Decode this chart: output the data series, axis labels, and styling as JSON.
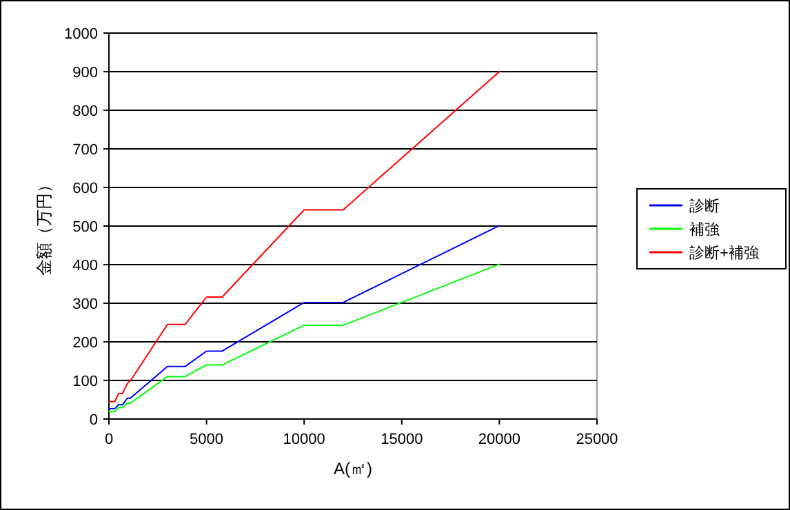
{
  "chart_data": {
    "type": "line",
    "xlabel": "A(㎡)",
    "ylabel": "金額（万円）",
    "xlim": [
      0,
      25000
    ],
    "xticks": [
      0,
      5000,
      10000,
      15000,
      20000,
      25000
    ],
    "ylim": [
      0,
      1000
    ],
    "yticks": [
      0,
      100,
      200,
      300,
      400,
      500,
      600,
      700,
      800,
      900,
      1000
    ],
    "grid": "y",
    "legend": "right",
    "marker": "none",
    "line_style": "solid",
    "x": [
      0,
      300,
      500,
      700,
      950,
      1100,
      3000,
      3900,
      5000,
      5800,
      10000,
      12000,
      20000
    ],
    "series": [
      {
        "name": "診断",
        "color": "#0000ff",
        "values": [
          27,
          27,
          37,
          37,
          54,
          54,
          136,
          136,
          176,
          176,
          302,
          302,
          501
        ]
      },
      {
        "name": "補強",
        "color": "#00ff00",
        "values": [
          19,
          19,
          30,
          30,
          41,
          41,
          110,
          110,
          140,
          140,
          243,
          243,
          401
        ]
      },
      {
        "name": "診断+補強",
        "color": "#ff0000",
        "values": [
          45,
          45,
          66,
          66,
          93,
          99,
          245,
          245,
          316,
          316,
          542,
          542,
          900
        ]
      }
    ]
  }
}
